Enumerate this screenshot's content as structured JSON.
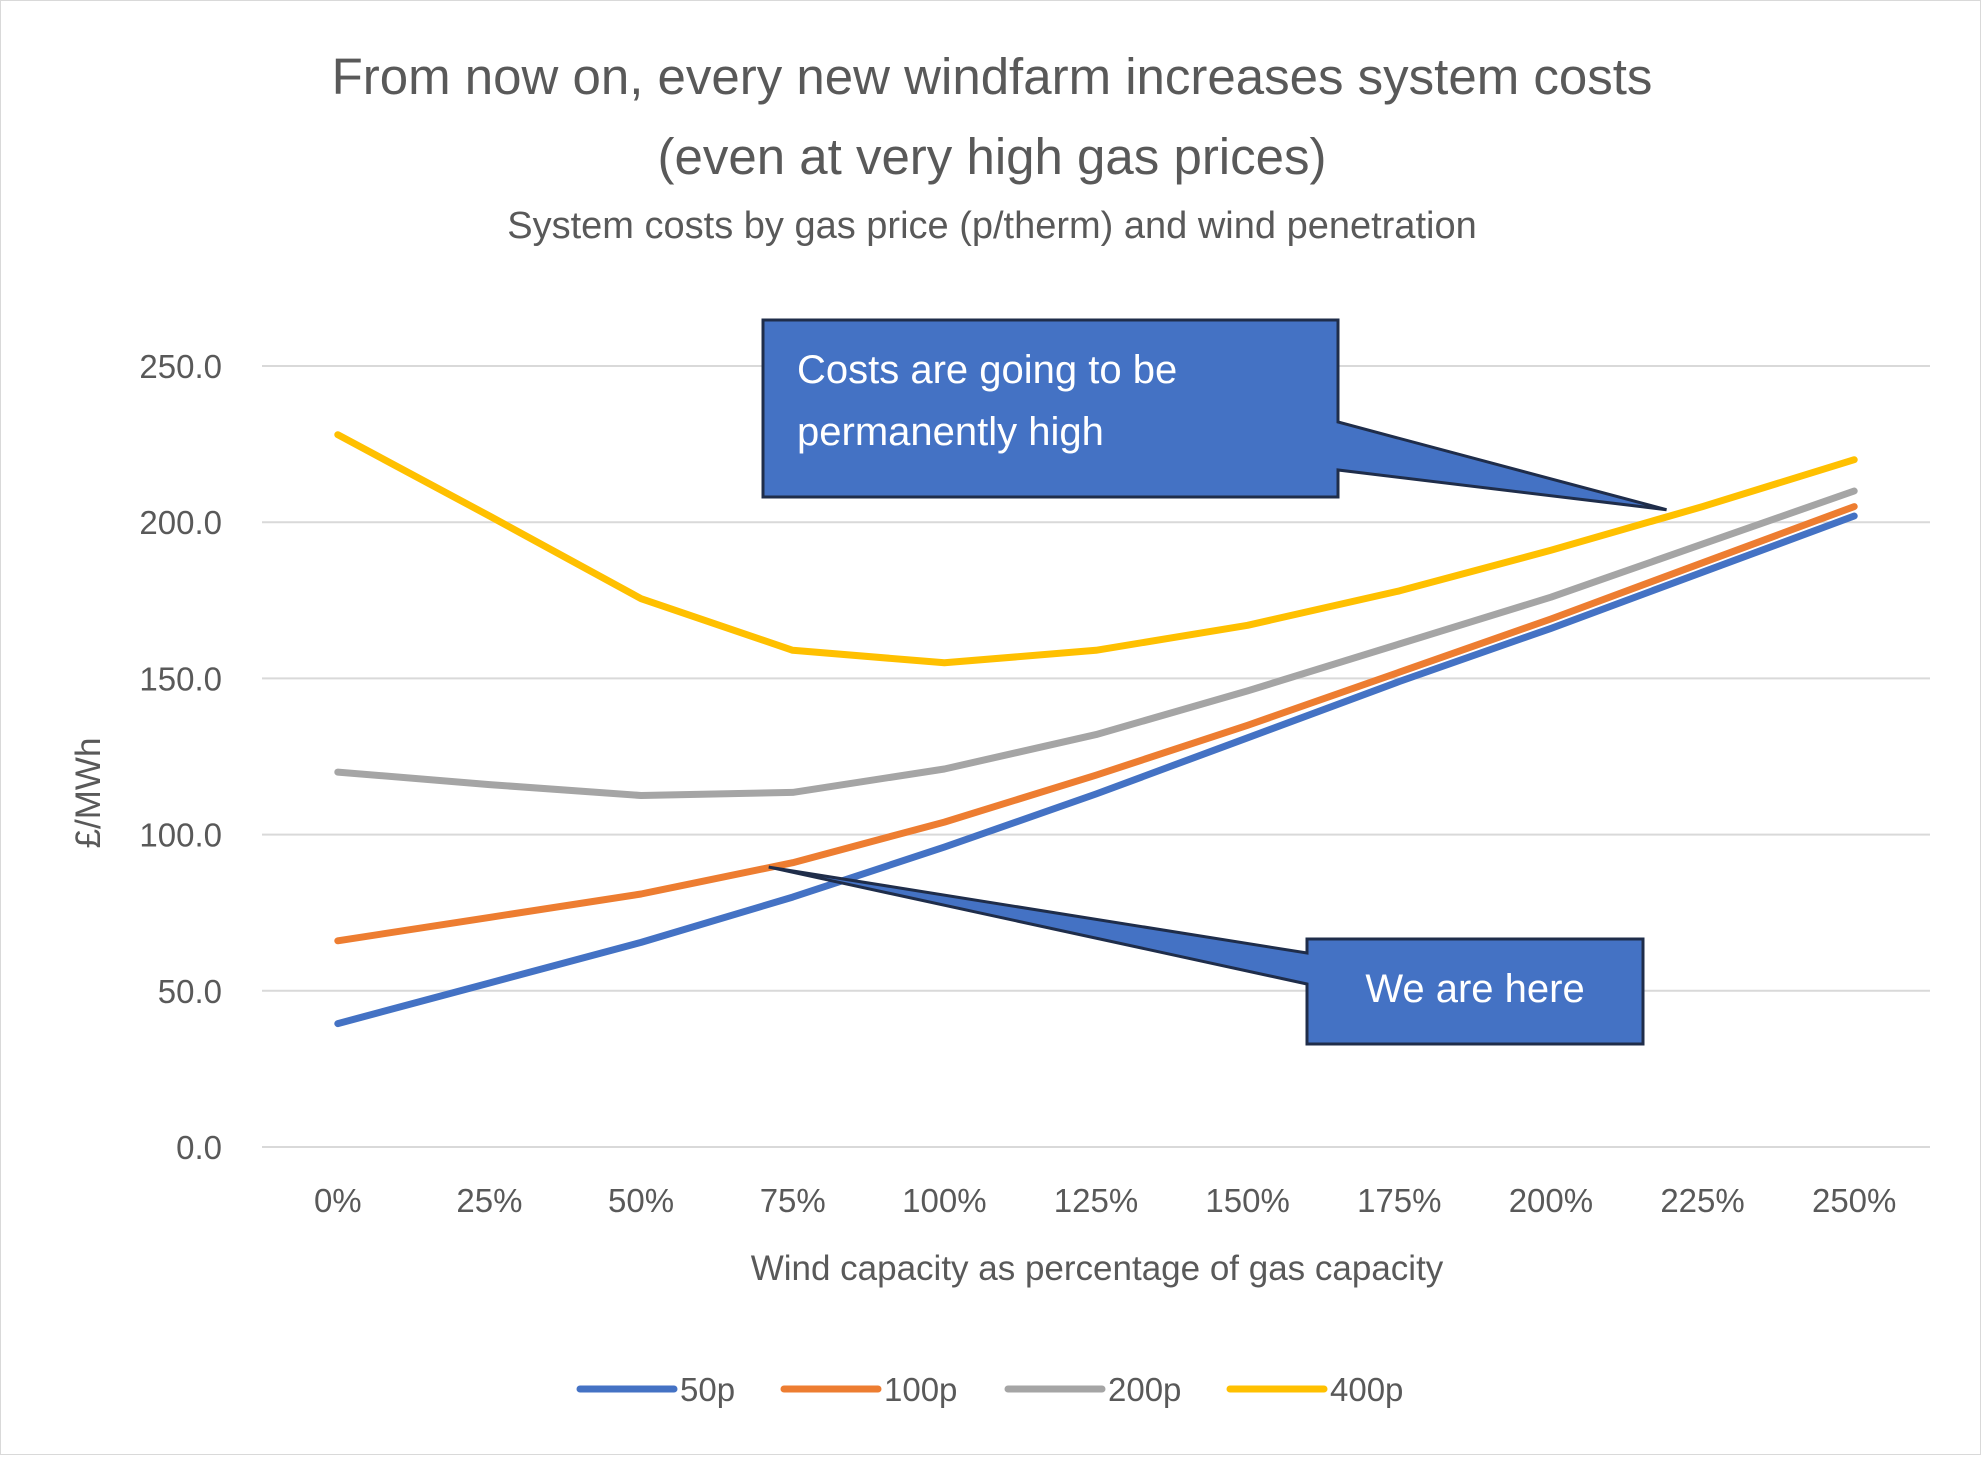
{
  "chart_data": {
    "type": "line",
    "title_line1": "From now on, every new windfarm increases system costs",
    "title_line2": "(even at very high gas prices)",
    "subtitle": "System costs by gas price (p/therm) and wind penetration",
    "xlabel": "Wind capacity as percentage of gas capacity",
    "ylabel": "£/MWh",
    "categories": [
      "0%",
      "25%",
      "50%",
      "75%",
      "100%",
      "125%",
      "150%",
      "175%",
      "200%",
      "225%",
      "250%"
    ],
    "ylim": [
      0,
      250
    ],
    "yticks": [
      0,
      50,
      100,
      150,
      200,
      250
    ],
    "ytick_labels": [
      "0.0",
      "50.0",
      "100.0",
      "150.0",
      "200.0",
      "250.0"
    ],
    "grid": true,
    "legend_position": "bottom",
    "series": [
      {
        "name": "50p",
        "color": "#4472C4",
        "values": [
          39.5,
          52.5,
          65.5,
          80,
          96,
          113,
          131,
          149,
          166,
          184,
          202
        ]
      },
      {
        "name": "100p",
        "color": "#ED7D31",
        "values": [
          66,
          73.5,
          81,
          91,
          104,
          119,
          135,
          152,
          169,
          187,
          205
        ]
      },
      {
        "name": "200p",
        "color": "#A5A5A5",
        "values": [
          120,
          116,
          112.5,
          113.5,
          121,
          132,
          146,
          161,
          176,
          193,
          210
        ]
      },
      {
        "name": "400p",
        "color": "#FFC000",
        "values": [
          228,
          202,
          175.5,
          159,
          155,
          159,
          167,
          178,
          191,
          205,
          220
        ]
      }
    ],
    "annotations": [
      {
        "id": "high",
        "line1": "Costs are going to be",
        "line2": "permanently high",
        "points_to_category": "225%",
        "points_to_value": 204
      },
      {
        "id": "here",
        "line1": "We are here",
        "points_to_category": "75%",
        "points_to_value": 88
      }
    ]
  },
  "colors": {
    "text": "#595959",
    "grid": "#D9D9D9",
    "callout_fill": "#4472C4",
    "callout_border": "#1F2D4A",
    "callout_text": "#FFFFFF"
  }
}
